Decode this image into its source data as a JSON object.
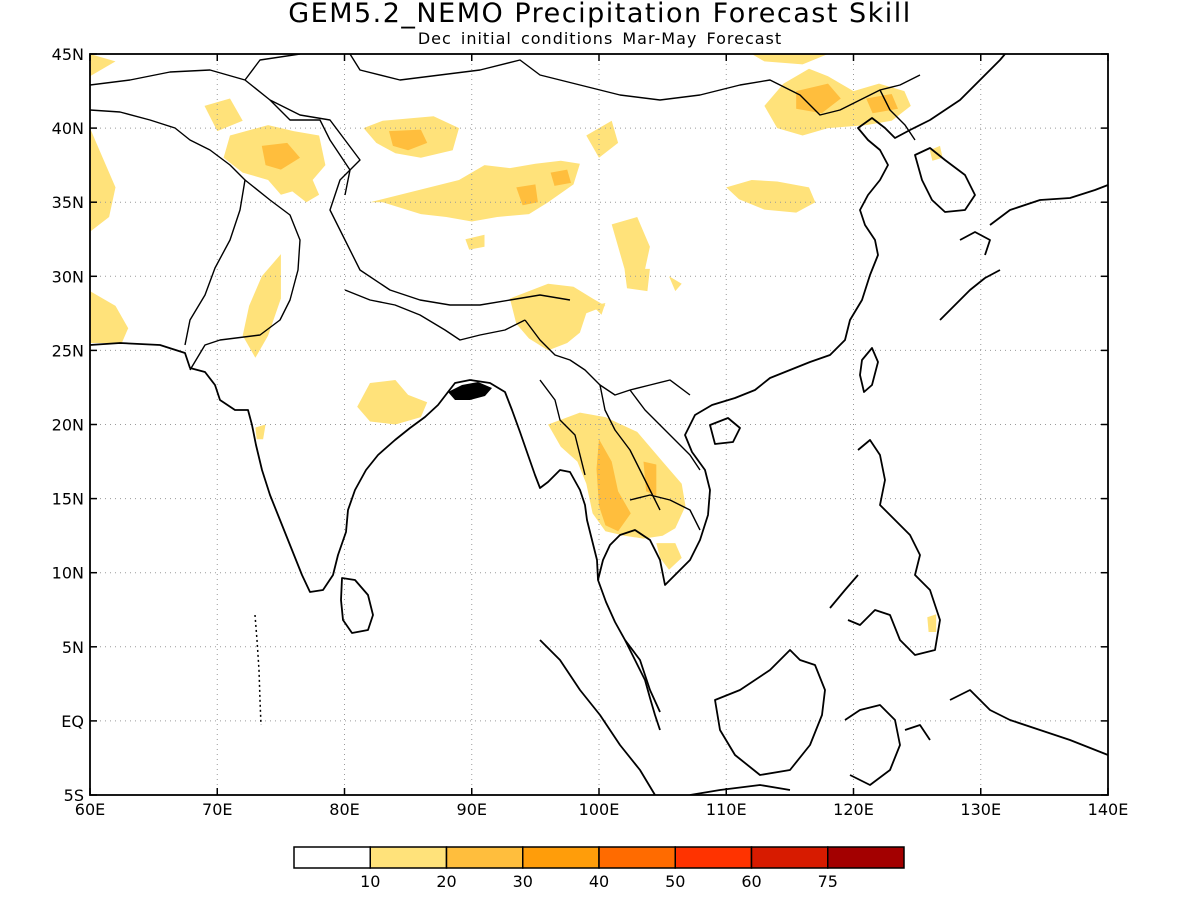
{
  "title": "GEM5.2_NEMO Precipitation Forecast Skill",
  "subtitle": "Dec initial conditions  Mar-May Forecast",
  "map": {
    "lon_range": [
      60,
      140
    ],
    "lat_range": [
      -5,
      45
    ],
    "lon_ticks": [
      {
        "value": 60,
        "label": "60E"
      },
      {
        "value": 70,
        "label": "70E"
      },
      {
        "value": 80,
        "label": "80E"
      },
      {
        "value": 90,
        "label": "90E"
      },
      {
        "value": 100,
        "label": "100E"
      },
      {
        "value": 110,
        "label": "110E"
      },
      {
        "value": 120,
        "label": "120E"
      },
      {
        "value": 130,
        "label": "130E"
      },
      {
        "value": 140,
        "label": "140E"
      }
    ],
    "lat_ticks": [
      {
        "value": 45,
        "label": "45N"
      },
      {
        "value": 40,
        "label": "40N"
      },
      {
        "value": 35,
        "label": "35N"
      },
      {
        "value": 30,
        "label": "30N"
      },
      {
        "value": 25,
        "label": "25N"
      },
      {
        "value": 20,
        "label": "20N"
      },
      {
        "value": 15,
        "label": "15N"
      },
      {
        "value": 10,
        "label": "10N"
      },
      {
        "value": 5,
        "label": "5N"
      },
      {
        "value": 0,
        "label": "EQ"
      },
      {
        "value": -5,
        "label": "5S"
      }
    ],
    "grid": true,
    "coastline_color": "#000000",
    "skill_regions": [
      {
        "level": 1,
        "points": [
          [
            60,
            45
          ],
          [
            62,
            44.5
          ],
          [
            60,
            43.5
          ]
        ]
      },
      {
        "level": 1,
        "points": [
          [
            60,
            40
          ],
          [
            61,
            38
          ],
          [
            62,
            36
          ],
          [
            61.5,
            34
          ],
          [
            60,
            33
          ]
        ]
      },
      {
        "level": 1,
        "points": [
          [
            60,
            29
          ],
          [
            62,
            28
          ],
          [
            63,
            26.5
          ],
          [
            62.5,
            25.5
          ],
          [
            60,
            25.5
          ]
        ]
      },
      {
        "level": 1,
        "points": [
          [
            69,
            41.5
          ],
          [
            71,
            42
          ],
          [
            72,
            40.5
          ],
          [
            70,
            39.8
          ]
        ]
      },
      {
        "level": 1,
        "points": [
          [
            71,
            39.5
          ],
          [
            74,
            40.2
          ],
          [
            76,
            39.8
          ],
          [
            78,
            39.5
          ],
          [
            78.5,
            37.5
          ],
          [
            77,
            36
          ],
          [
            75,
            35.5
          ],
          [
            74,
            36.5
          ],
          [
            72,
            37
          ],
          [
            70.5,
            38
          ]
        ]
      },
      {
        "level": 1,
        "points": [
          [
            75.5,
            36
          ],
          [
            77,
            35
          ],
          [
            78,
            35.5
          ],
          [
            77.5,
            36.5
          ]
        ]
      },
      {
        "level": 2,
        "points": [
          [
            73.5,
            38.8
          ],
          [
            75.5,
            39
          ],
          [
            76.5,
            38
          ],
          [
            75,
            37.2
          ],
          [
            73.8,
            37.5
          ]
        ]
      },
      {
        "level": 1,
        "points": [
          [
            75,
            31.5
          ],
          [
            73.5,
            30
          ],
          [
            72.5,
            28
          ],
          [
            72,
            26
          ],
          [
            73,
            24.5
          ],
          [
            74,
            26
          ],
          [
            75,
            28.5
          ]
        ]
      },
      {
        "level": 1,
        "points": [
          [
            81.5,
            40
          ],
          [
            83,
            40.5
          ],
          [
            87,
            40.8
          ],
          [
            89,
            40
          ],
          [
            88.5,
            38.5
          ],
          [
            86,
            38
          ],
          [
            84,
            38.3
          ],
          [
            82.5,
            39
          ]
        ]
      },
      {
        "level": 2,
        "points": [
          [
            83.5,
            39.8
          ],
          [
            86,
            39.9
          ],
          [
            86.5,
            39
          ],
          [
            85,
            38.5
          ],
          [
            83.8,
            38.8
          ]
        ]
      },
      {
        "level": 1,
        "points": [
          [
            89,
            36.5
          ],
          [
            91,
            37.5
          ],
          [
            93,
            37.3
          ],
          [
            95,
            37.6
          ],
          [
            97,
            37.8
          ],
          [
            98.5,
            37.6
          ],
          [
            98,
            36.2
          ],
          [
            96,
            35
          ],
          [
            94.5,
            34.2
          ],
          [
            92,
            34
          ],
          [
            90,
            33.7
          ],
          [
            88,
            34
          ],
          [
            86,
            34.2
          ],
          [
            83,
            35
          ],
          [
            82,
            35
          ]
        ]
      },
      {
        "level": 2,
        "points": [
          [
            93.5,
            36
          ],
          [
            95,
            36.2
          ],
          [
            95.2,
            35
          ],
          [
            94,
            34.8
          ]
        ]
      },
      {
        "level": 2,
        "points": [
          [
            96.2,
            37
          ],
          [
            97.5,
            37.2
          ],
          [
            97.8,
            36.3
          ],
          [
            96.5,
            36.1
          ]
        ]
      },
      {
        "level": 1,
        "points": [
          [
            89.5,
            32.5
          ],
          [
            91,
            32.8
          ],
          [
            91,
            32
          ],
          [
            89.8,
            31.8
          ]
        ]
      },
      {
        "level": 1,
        "points": [
          [
            99,
            39.5
          ],
          [
            101,
            40.5
          ],
          [
            101.5,
            39
          ],
          [
            100,
            38
          ]
        ]
      },
      {
        "level": 1,
        "points": [
          [
            101,
            33.5
          ],
          [
            103,
            34
          ],
          [
            104,
            32
          ],
          [
            103.5,
            30
          ],
          [
            102,
            30.5
          ]
        ]
      },
      {
        "level": 1,
        "points": [
          [
            102,
            30.5
          ],
          [
            104,
            30.5
          ],
          [
            103.8,
            29
          ],
          [
            102.2,
            29.2
          ]
        ]
      },
      {
        "level": 1,
        "points": [
          [
            105.5,
            30
          ],
          [
            106.5,
            29.5
          ],
          [
            106,
            29
          ]
        ]
      },
      {
        "level": 1,
        "points": [
          [
            112,
            45
          ],
          [
            118,
            45
          ],
          [
            116,
            44.3
          ],
          [
            113,
            44.5
          ]
        ]
      },
      {
        "level": 1,
        "points": [
          [
            114.5,
            43
          ],
          [
            116.5,
            44
          ],
          [
            118,
            43.5
          ],
          [
            120,
            42.5
          ],
          [
            122,
            43
          ],
          [
            124,
            42.5
          ],
          [
            124.5,
            41.5
          ],
          [
            123,
            40.5
          ],
          [
            121,
            40.2
          ],
          [
            118,
            40
          ],
          [
            116,
            39.5
          ],
          [
            114,
            40
          ],
          [
            113,
            41.5
          ]
        ]
      },
      {
        "level": 2,
        "points": [
          [
            115.5,
            42.5
          ],
          [
            118,
            43
          ],
          [
            119,
            42
          ],
          [
            117.5,
            41
          ],
          [
            115.5,
            41.3
          ]
        ]
      },
      {
        "level": 2,
        "points": [
          [
            121,
            42
          ],
          [
            123,
            42.3
          ],
          [
            123.5,
            41.3
          ],
          [
            121.5,
            41
          ]
        ]
      },
      {
        "level": 1,
        "points": [
          [
            110,
            36
          ],
          [
            112,
            36.5
          ],
          [
            114,
            36.4
          ],
          [
            116.5,
            36
          ],
          [
            117,
            35
          ],
          [
            115.5,
            34.3
          ],
          [
            113,
            34.5
          ],
          [
            111,
            35.2
          ]
        ]
      },
      {
        "level": 1,
        "points": [
          [
            126,
            38.5
          ],
          [
            126.8,
            38.8
          ],
          [
            127,
            38
          ],
          [
            126.2,
            37.8
          ]
        ]
      },
      {
        "level": 1,
        "points": [
          [
            93,
            28.5
          ],
          [
            96,
            29.5
          ],
          [
            98,
            29.3
          ],
          [
            99.5,
            28.5
          ],
          [
            100.5,
            28
          ],
          [
            99,
            27.5
          ],
          [
            98.5,
            26.2
          ],
          [
            97.5,
            25.5
          ],
          [
            96,
            25
          ],
          [
            94.5,
            25.8
          ],
          [
            93.5,
            26.8
          ]
        ]
      },
      {
        "level": 1,
        "points": [
          [
            99.5,
            28
          ],
          [
            100.5,
            28.2
          ],
          [
            100.2,
            27.4
          ]
        ]
      },
      {
        "level": 1,
        "points": [
          [
            82,
            22.8
          ],
          [
            84,
            23
          ],
          [
            85,
            22
          ],
          [
            86.5,
            21.5
          ],
          [
            86,
            20.5
          ],
          [
            84,
            20
          ],
          [
            82,
            20.2
          ],
          [
            81,
            21.2
          ]
        ]
      },
      {
        "level": 1,
        "points": [
          [
            73,
            19.8
          ],
          [
            73.8,
            20
          ],
          [
            73.6,
            19
          ],
          [
            73.1,
            19
          ]
        ]
      },
      {
        "level": 1,
        "points": [
          [
            96,
            20
          ],
          [
            98.5,
            20.8
          ],
          [
            100.5,
            20.5
          ],
          [
            103,
            19.5
          ],
          [
            105,
            17.5
          ],
          [
            106.5,
            16
          ],
          [
            106.8,
            14.5
          ],
          [
            106,
            13
          ],
          [
            105,
            12.5
          ],
          [
            103.5,
            12.3
          ],
          [
            102,
            12.5
          ],
          [
            100.5,
            12.8
          ],
          [
            99.5,
            14
          ],
          [
            99,
            16
          ],
          [
            98.3,
            17.5
          ],
          [
            97,
            18.5
          ]
        ]
      },
      {
        "level": 2,
        "points": [
          [
            100,
            19
          ],
          [
            101,
            17.5
          ],
          [
            101.5,
            15.5
          ],
          [
            102.5,
            14
          ],
          [
            101.5,
            12.8
          ],
          [
            100.5,
            13.2
          ],
          [
            100,
            14.5
          ],
          [
            99.8,
            17
          ]
        ]
      },
      {
        "level": 2,
        "points": [
          [
            103.5,
            17.5
          ],
          [
            104.5,
            17.3
          ],
          [
            104.5,
            15.2
          ],
          [
            103.7,
            15.5
          ]
        ]
      },
      {
        "level": 1,
        "points": [
          [
            104.5,
            12
          ],
          [
            106,
            12
          ],
          [
            106.5,
            11
          ],
          [
            105.5,
            10.2
          ],
          [
            104.8,
            11
          ]
        ]
      },
      {
        "level": 1,
        "points": [
          [
            125.8,
            7
          ],
          [
            126.5,
            7.2
          ],
          [
            126.5,
            6
          ],
          [
            125.9,
            6
          ]
        ]
      }
    ],
    "colorbar": {
      "labels": [
        "10",
        "20",
        "30",
        "40",
        "50",
        "60",
        "75"
      ],
      "colors": [
        "#ffffff",
        "#ffe27a",
        "#ffbe3d",
        "#ff9d0a",
        "#ff6b00",
        "#ff3300",
        "#d71b00",
        "#a30000"
      ]
    }
  }
}
